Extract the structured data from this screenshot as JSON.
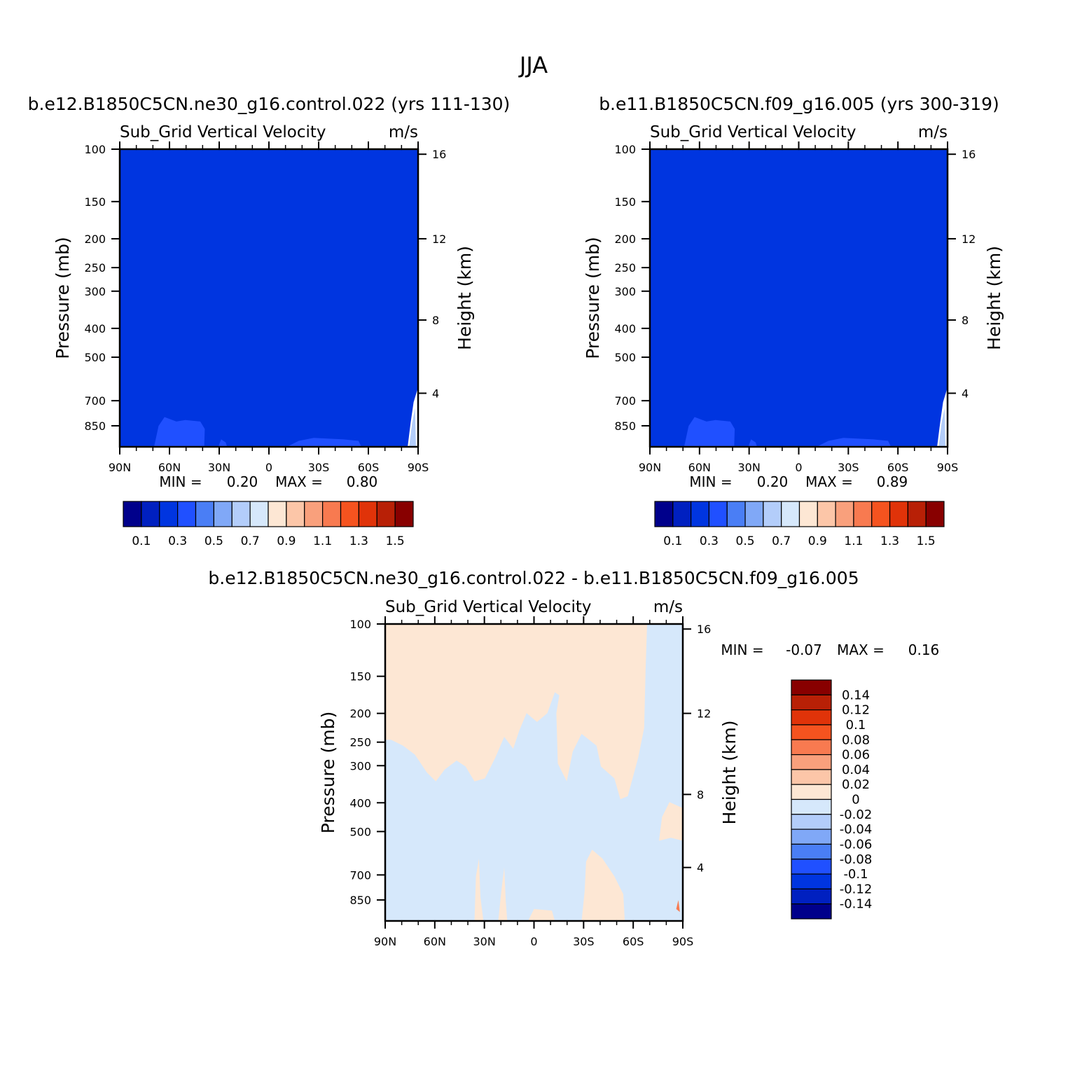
{
  "title": "JJA",
  "chart_data": [
    {
      "type": "heatmap",
      "case": "b.e12.B1850C5CN.ne30_g16.control.022 (yrs 111-130)",
      "variable": "Sub_Grid Vertical Velocity",
      "units": "m/s",
      "ylabel": "Pressure (mb)",
      "y2label": "Height (km)",
      "x_ticks": [
        "90N",
        "60N",
        "30N",
        "0",
        "30S",
        "60S",
        "90S"
      ],
      "y_ticks": [
        "100",
        "150",
        "200",
        "250",
        "300",
        "400",
        "500",
        "700",
        "850"
      ],
      "y2_ticks": [
        "16",
        "12",
        "8",
        "4"
      ],
      "min_label": "MIN =",
      "min_value": "0.20",
      "max_label": "MAX =",
      "max_value": "0.80",
      "colorbar_labels": [
        "0.1",
        "0.3",
        "0.5",
        "0.7",
        "0.9",
        "1.1",
        "1.3",
        "1.5"
      ],
      "field": {
        "dominant_bin": "0.2-0.3",
        "low_level_bin": "0.3-0.4"
      }
    },
    {
      "type": "heatmap",
      "case": "b.e11.B1850C5CN.f09_g16.005 (yrs 300-319)",
      "variable": "Sub_Grid Vertical Velocity",
      "units": "m/s",
      "ylabel": "Pressure (mb)",
      "y2label": "Height (km)",
      "x_ticks": [
        "90N",
        "60N",
        "30N",
        "0",
        "30S",
        "60S",
        "90S"
      ],
      "y_ticks": [
        "100",
        "150",
        "200",
        "250",
        "300",
        "400",
        "500",
        "700",
        "850"
      ],
      "y2_ticks": [
        "16",
        "12",
        "8",
        "4"
      ],
      "min_label": "MIN =",
      "min_value": "0.20",
      "max_label": "MAX =",
      "max_value": "0.89",
      "colorbar_labels": [
        "0.1",
        "0.3",
        "0.5",
        "0.7",
        "0.9",
        "1.1",
        "1.3",
        "1.5"
      ],
      "field": {
        "dominant_bin": "0.2-0.3",
        "low_level_bin": "0.3-0.4"
      }
    },
    {
      "type": "heatmap",
      "case": "b.e12.B1850C5CN.ne30_g16.control.022 - b.e11.B1850C5CN.f09_g16.005",
      "variable": "Sub_Grid Vertical Velocity",
      "units": "m/s",
      "ylabel": "Pressure (mb)",
      "y2label": "Height (km)",
      "x_ticks": [
        "90N",
        "60N",
        "30N",
        "0",
        "30S",
        "60S",
        "90S"
      ],
      "y_ticks": [
        "100",
        "150",
        "200",
        "250",
        "300",
        "400",
        "500",
        "700",
        "850"
      ],
      "y2_ticks": [
        "16",
        "12",
        "8",
        "4"
      ],
      "min_label": "MIN =",
      "min_value": "-0.07",
      "max_label": "MAX =",
      "max_value": "0.16",
      "colorbar_labels": [
        "0.14",
        "0.12",
        "0.1",
        "0.08",
        "0.06",
        "0.04",
        "0.02",
        "0",
        "-0.02",
        "-0.04",
        "-0.06",
        "-0.08",
        "-0.1",
        "-0.12",
        "-0.14"
      ],
      "field": {
        "dominant_bins": [
          "0-0.02",
          "-0.02-0"
        ]
      }
    }
  ],
  "colors": {
    "scale": [
      "#00008b",
      "#0020c0",
      "#0035e0",
      "#2050ff",
      "#4a7ef5",
      "#80a8f7",
      "#b3cdfa",
      "#d6e8fb",
      "#fde7d4",
      "#fcc6a8",
      "#f9a07c",
      "#f87a50",
      "#f5531f",
      "#e03309",
      "#b82006",
      "#880000"
    ],
    "field_main": "#0035e0",
    "field_low": "#2050ff",
    "diff_pos": "#fde7d4",
    "diff_neg": "#d6e8fb"
  }
}
